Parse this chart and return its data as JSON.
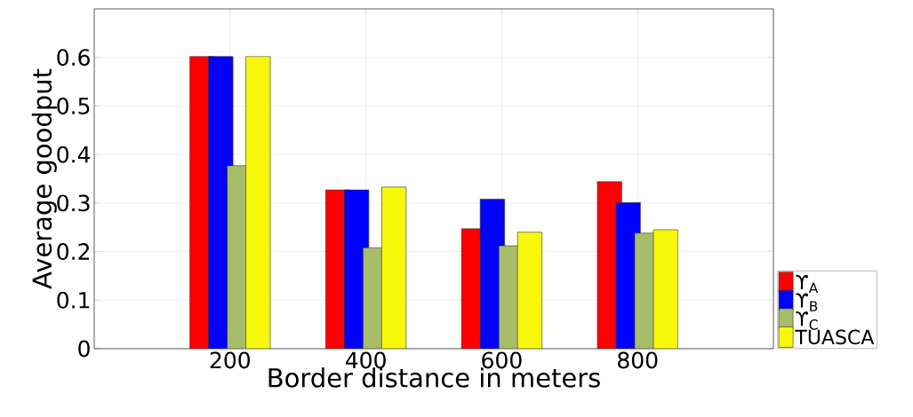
{
  "chart_data": {
    "type": "bar",
    "xlabel": "Border distance in meters",
    "ylabel": "Average goodput",
    "x": [
      200,
      400,
      600,
      800
    ],
    "xlim": [
      0,
      1000
    ],
    "xticks": [
      200,
      400,
      600,
      800
    ],
    "ylim": [
      0,
      0.7
    ],
    "yticks": [
      0,
      0.1,
      0.2,
      0.3,
      0.4,
      0.5,
      0.6
    ],
    "grid": true,
    "legend": "bottom right",
    "series": [
      {
        "name": "ϒ$_{A}$",
        "color": "#ff0000",
        "values": [
          0.602,
          0.327,
          0.247,
          0.344
        ]
      },
      {
        "name": "ϒ$_{B}$",
        "color": "#0000ff",
        "values": [
          0.602,
          0.327,
          0.308,
          0.301
        ]
      },
      {
        "name": "ϒ$_{C}$",
        "color": "#a6bd69",
        "values": [
          0.377,
          0.208,
          0.212,
          0.238
        ]
      },
      {
        "name": "TUASCA",
        "color": "#f7f70c",
        "values": [
          0.602,
          0.333,
          0.24,
          0.245
        ]
      }
    ]
  }
}
